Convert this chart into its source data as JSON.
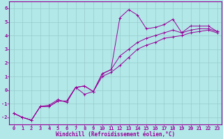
{
  "xlabel": "Windchill (Refroidissement éolien,°C)",
  "bg_color": "#b2e8e8",
  "line_color": "#990099",
  "grid_color": "#99cccc",
  "xlim": [
    -0.5,
    23.5
  ],
  "ylim": [
    -2.5,
    6.5
  ],
  "yticks": [
    -2,
    -1,
    0,
    1,
    2,
    3,
    4,
    5,
    6
  ],
  "xticks": [
    0,
    1,
    2,
    3,
    4,
    5,
    6,
    7,
    8,
    9,
    10,
    11,
    12,
    13,
    14,
    15,
    16,
    17,
    18,
    19,
    20,
    21,
    22,
    23
  ],
  "series1_x": [
    0,
    1,
    2,
    3,
    4,
    5,
    6,
    7,
    8,
    9,
    10,
    11,
    12,
    13,
    14,
    15,
    16,
    17,
    18,
    19,
    20,
    21,
    22,
    23
  ],
  "series1_y": [
    -1.7,
    -2.0,
    -2.2,
    -1.2,
    -1.2,
    -0.8,
    -0.8,
    0.2,
    0.3,
    -0.1,
    1.2,
    1.5,
    5.3,
    5.9,
    5.5,
    4.5,
    4.6,
    4.8,
    5.2,
    4.2,
    4.7,
    4.7,
    4.7,
    4.3
  ],
  "series2_x": [
    0,
    1,
    2,
    3,
    4,
    5,
    6,
    7,
    8,
    9,
    10,
    11,
    12,
    13,
    14,
    15,
    16,
    17,
    18,
    19,
    20,
    21,
    22,
    23
  ],
  "series2_y": [
    -1.7,
    -2.0,
    -2.2,
    -1.2,
    -1.2,
    -0.8,
    -0.8,
    0.2,
    -0.3,
    -0.1,
    1.2,
    1.5,
    2.5,
    3.0,
    3.5,
    3.8,
    4.0,
    4.2,
    4.4,
    4.2,
    4.4,
    4.5,
    4.5,
    4.3
  ],
  "series3_x": [
    0,
    1,
    2,
    3,
    4,
    5,
    6,
    7,
    8,
    9,
    10,
    11,
    12,
    13,
    14,
    15,
    16,
    17,
    18,
    19,
    20,
    21,
    22,
    23
  ],
  "series3_y": [
    -1.7,
    -2.0,
    -2.2,
    -1.2,
    -1.1,
    -0.7,
    -0.9,
    0.2,
    0.3,
    -0.1,
    1.0,
    1.3,
    1.8,
    2.4,
    3.0,
    3.3,
    3.5,
    3.8,
    3.9,
    4.0,
    4.2,
    4.3,
    4.4,
    4.2
  ],
  "tick_fontsize": 5,
  "xlabel_fontsize": 5.5,
  "tick_color": "#990099",
  "spine_color": "#990099"
}
